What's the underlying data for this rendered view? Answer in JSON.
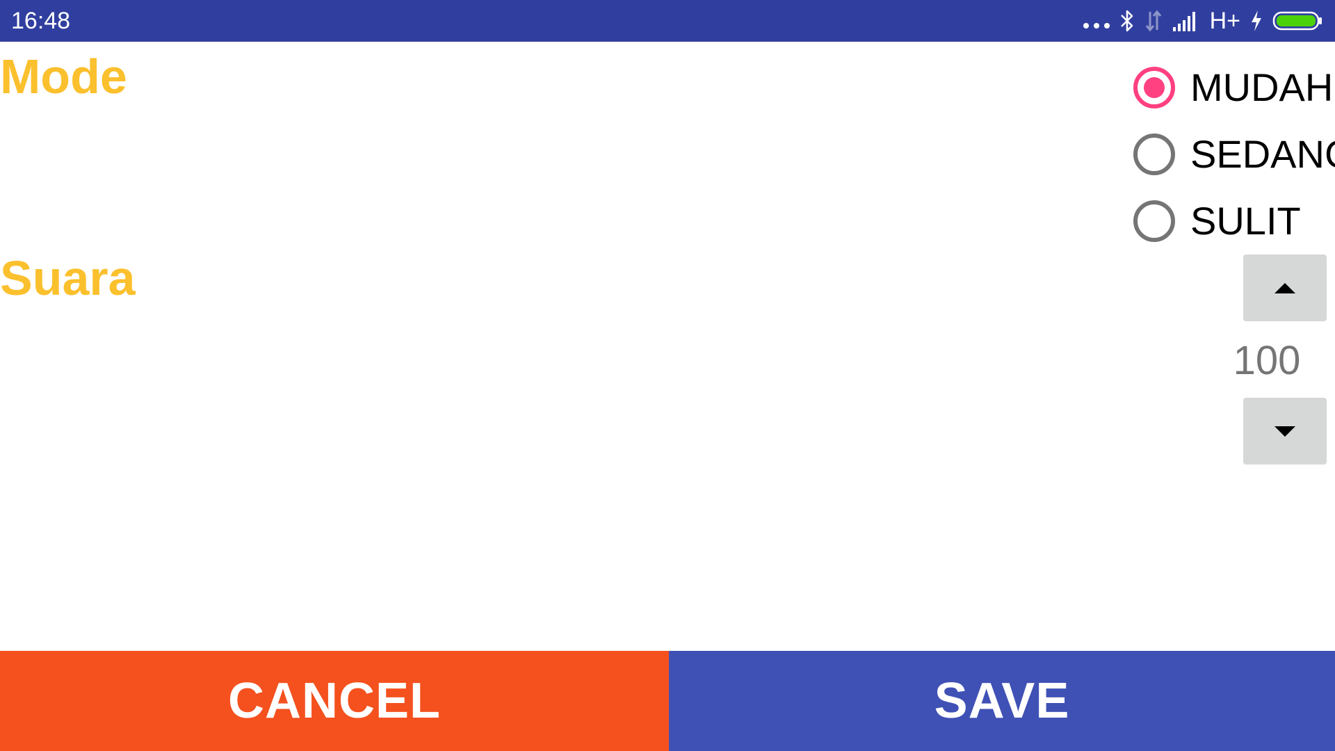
{
  "status_bar": {
    "time": "16:48",
    "network": "H+",
    "icons": [
      "more-dots-icon",
      "bluetooth-icon",
      "data-transfer-icon",
      "signal-icon",
      "charging-icon",
      "battery-icon"
    ],
    "colors": {
      "background": "#303F9F",
      "battery_fill": "#4CD20B"
    }
  },
  "mode": {
    "label": "Mode",
    "options": [
      {
        "label": "MUDAH",
        "checked": true
      },
      {
        "label": "SEDANG",
        "checked": false
      },
      {
        "label": "SULIT",
        "checked": false
      }
    ]
  },
  "suara": {
    "label": "Suara",
    "value": "100",
    "up_icon": "arrow-up-icon",
    "down_icon": "arrow-down-icon"
  },
  "buttons": {
    "cancel_label": "CANCEL",
    "save_label": "SAVE"
  },
  "colors": {
    "label": "#FBC02D",
    "radio_checked": "#FF4081",
    "radio_unchecked": "#757575",
    "stepper_bg": "#D6D7D7",
    "cancel_bg": "#F4511E",
    "save_bg": "#3F51B5"
  }
}
